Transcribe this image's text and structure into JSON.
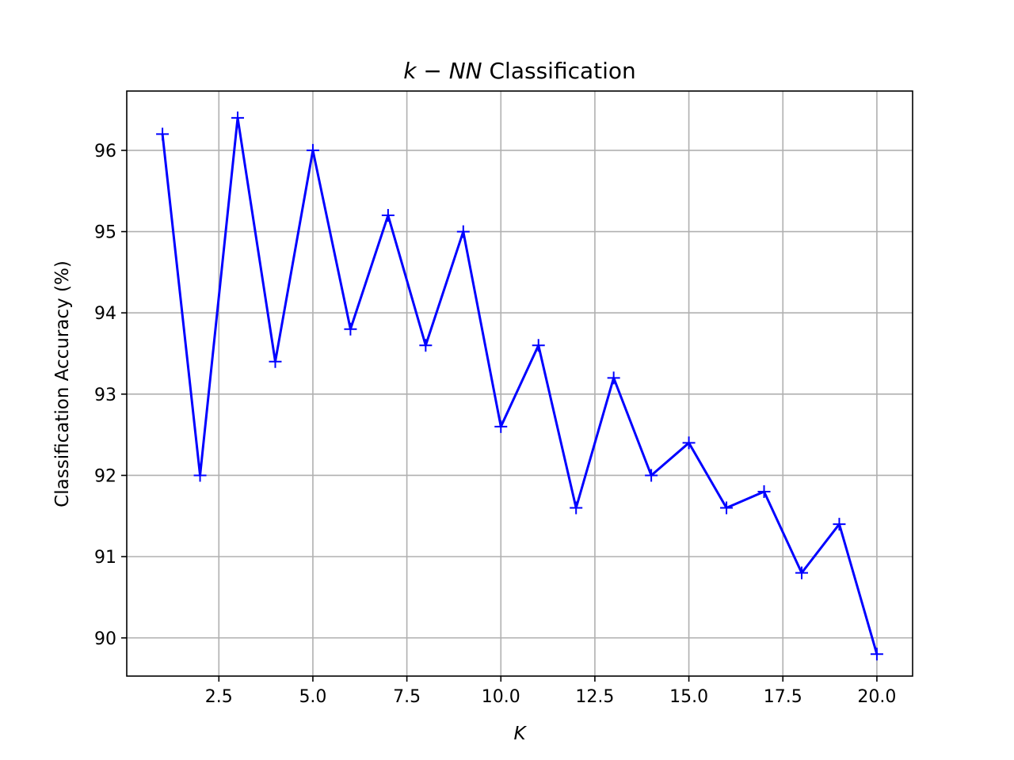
{
  "chart_data": {
    "type": "line",
    "title": {
      "italic_part": "k − NN",
      "rest": " Classification"
    },
    "xlabel": "K",
    "ylabel": "Classification Accuracy (%)",
    "xlim": [
      0.05,
      20.95
    ],
    "ylim": [
      89.53,
      96.73
    ],
    "xticks": [
      2.5,
      5.0,
      7.5,
      10.0,
      12.5,
      15.0,
      17.5,
      20.0
    ],
    "xtick_labels": [
      "2.5",
      "5.0",
      "7.5",
      "10.0",
      "12.5",
      "15.0",
      "17.5",
      "20.0"
    ],
    "yticks": [
      90,
      91,
      92,
      93,
      94,
      95,
      96
    ],
    "ytick_labels": [
      "90",
      "91",
      "92",
      "93",
      "94",
      "95",
      "96"
    ],
    "grid": true,
    "series": [
      {
        "color": "#0000ff",
        "marker": "plus",
        "x": [
          1,
          2,
          3,
          4,
          5,
          6,
          7,
          8,
          9,
          10,
          11,
          12,
          13,
          14,
          15,
          16,
          17,
          18,
          19,
          20
        ],
        "y": [
          96.2,
          92.0,
          96.4,
          93.4,
          96.0,
          93.8,
          95.2,
          93.6,
          95.0,
          92.6,
          93.6,
          91.6,
          93.2,
          92.0,
          92.4,
          91.6,
          91.8,
          90.8,
          91.4,
          89.8
        ]
      }
    ]
  }
}
